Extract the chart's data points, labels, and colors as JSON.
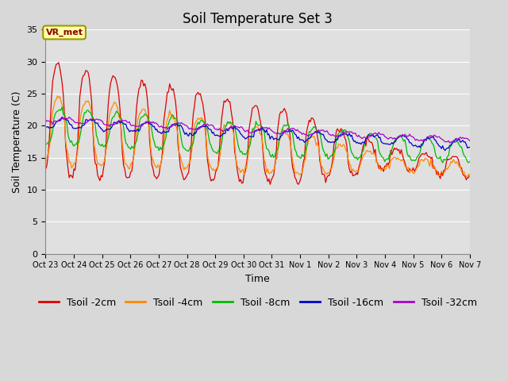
{
  "title": "Soil Temperature Set 3",
  "xlabel": "Time",
  "ylabel": "Soil Temperature (C)",
  "ylim": [
    0,
    35
  ],
  "yticks": [
    0,
    5,
    10,
    15,
    20,
    25,
    30,
    35
  ],
  "xtick_labels": [
    "Oct 23",
    "Oct 24",
    "Oct 25",
    "Oct 26",
    "Oct 27",
    "Oct 28",
    "Oct 29",
    "Oct 30",
    "Oct 31",
    "Nov 1",
    "Nov 2",
    "Nov 3",
    "Nov 4",
    "Nov 5",
    "Nov 6",
    "Nov 7"
  ],
  "series": [
    {
      "label": "Tsoil -2cm",
      "color": "#dd0000"
    },
    {
      "label": "Tsoil -4cm",
      "color": "#ff8800"
    },
    {
      "label": "Tsoil -8cm",
      "color": "#00bb00"
    },
    {
      "label": "Tsoil -16cm",
      "color": "#0000cc"
    },
    {
      "label": "Tsoil -32cm",
      "color": "#aa00cc"
    }
  ],
  "annotation_text": "VR_met",
  "fig_bg": "#d8d8d8",
  "ax_bg": "#e0e0e0",
  "grid_color": "#ffffff",
  "title_fontsize": 12,
  "tick_fontsize": 7,
  "axis_label_fontsize": 9,
  "legend_fontsize": 9
}
